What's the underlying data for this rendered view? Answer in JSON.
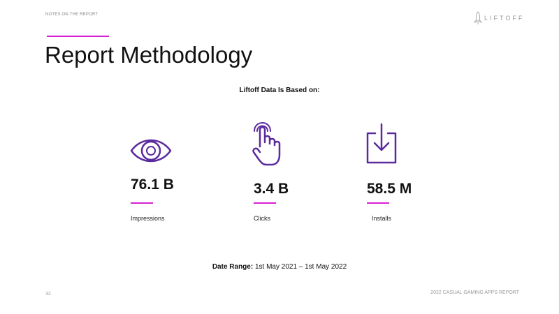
{
  "header": {
    "section": "NOTES ON THE REPORT",
    "logo": "LIFTOFF"
  },
  "title": "Report Methodology",
  "subtitle": "Liftoff Data Is Based on:",
  "stats": [
    {
      "value": "76.1 B",
      "label": "Impressions"
    },
    {
      "value": "3.4 B",
      "label": "Clicks"
    },
    {
      "value": "58.5 M",
      "label": "Installs"
    }
  ],
  "date_range": {
    "label": "Date Range:",
    "text": "1st May 2021 – 1st May 2022"
  },
  "footer": {
    "page": "32",
    "report": "2022 CASUAL GAMING APPS REPORT"
  }
}
